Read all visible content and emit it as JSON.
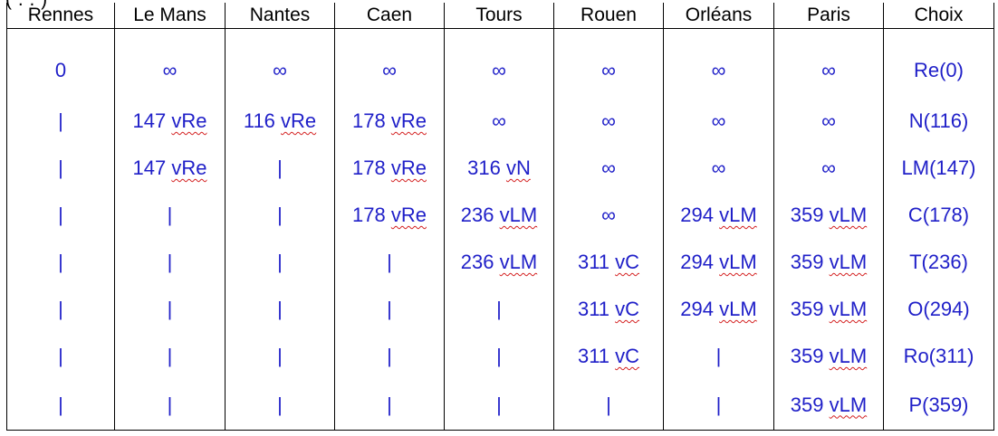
{
  "header_cut_text": "(               .                   .                                      )",
  "columns": [
    "Rennes",
    "Le Mans",
    "Nantes",
    "Caen",
    "Tours",
    "Rouen",
    "Orléans",
    "Paris",
    "Choix"
  ],
  "rows": [
    {
      "cells": [
        "0",
        "∞",
        "∞",
        "∞",
        "∞",
        "∞",
        "∞",
        "∞"
      ],
      "choice": "Re(0)"
    },
    {
      "cells": [
        "|",
        "147 vRe",
        "116 vRe",
        "178 vRe",
        "∞",
        "∞",
        "∞",
        "∞"
      ],
      "choice": "N(116)"
    },
    {
      "cells": [
        "|",
        "147 vRe",
        "|",
        "178 vRe",
        "316 vN",
        "∞",
        "∞",
        "∞"
      ],
      "choice": "LM(147)"
    },
    {
      "cells": [
        "|",
        "|",
        "|",
        "178 vRe",
        "236 vLM",
        "∞",
        "294 vLM",
        "359 vLM"
      ],
      "choice": "C(178)"
    },
    {
      "cells": [
        "|",
        "|",
        "|",
        "|",
        "236 vLM",
        "311 vC",
        "294 vLM",
        "359 vLM"
      ],
      "choice": "T(236)"
    },
    {
      "cells": [
        "|",
        "|",
        "|",
        "|",
        "|",
        "311 vC",
        "294 vLM",
        "359 vLM"
      ],
      "choice": "O(294)"
    },
    {
      "cells": [
        "|",
        "|",
        "|",
        "|",
        "|",
        "311 vC",
        "|",
        "359 vLM"
      ],
      "choice": "Ro(311)"
    },
    {
      "cells": [
        "|",
        "|",
        "|",
        "|",
        "|",
        "|",
        "|",
        "359 vLM"
      ],
      "choice": "P(359)"
    }
  ],
  "colors": {
    "value_text": "#1f1fc8",
    "header_text": "#000000",
    "grid": "#000000",
    "spellcheck_underline": "#d42020"
  }
}
